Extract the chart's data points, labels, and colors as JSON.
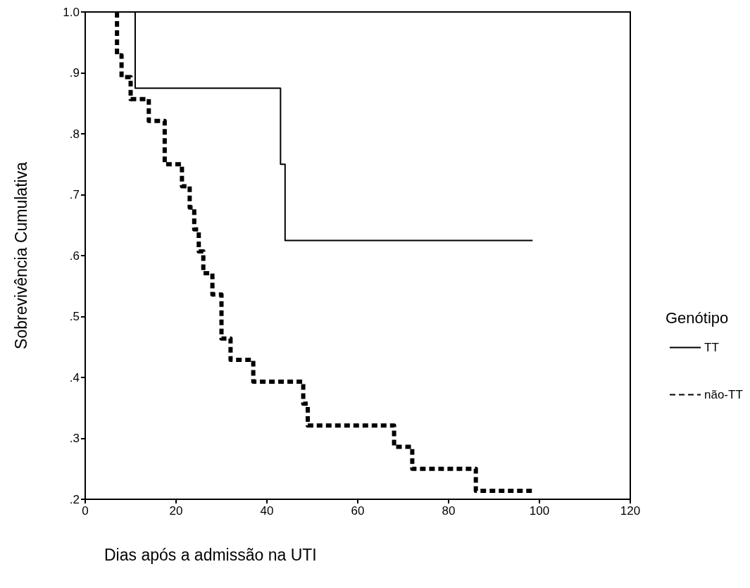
{
  "chart_data": {
    "type": "step",
    "xlabel": "Dias após a admissão na UTI",
    "ylabel": "Sobrevivência Cumulativa",
    "legend_title": "Genótipo",
    "series": [
      {
        "name": "TT",
        "color": "#000000",
        "line_style": "solid",
        "x": [
          11,
          11,
          43,
          44,
          98.5
        ],
        "values": [
          1.0,
          0.875,
          0.75,
          0.625,
          0.625
        ]
      },
      {
        "name": "não-TT",
        "color": "#000000",
        "line_style": "dashed",
        "x": [
          7,
          7,
          8,
          10,
          14,
          17.5,
          21.3,
          23,
          24,
          25,
          26,
          28,
          30,
          32,
          37,
          48,
          49,
          68,
          72,
          86,
          99
        ],
        "values": [
          1.0,
          0.929,
          0.893,
          0.857,
          0.821,
          0.75,
          0.714,
          0.679,
          0.643,
          0.607,
          0.571,
          0.536,
          0.464,
          0.429,
          0.393,
          0.357,
          0.321,
          0.286,
          0.25,
          0.214,
          0.214
        ]
      }
    ],
    "xlim": [
      0,
      120
    ],
    "xticks": [
      0,
      20,
      40,
      60,
      80,
      100,
      120
    ],
    "ylim": [
      0.2,
      1.0
    ],
    "yticks": [
      {
        "value": 0.2,
        "label": ".2"
      },
      {
        "value": 0.3,
        "label": ".3"
      },
      {
        "value": 0.4,
        "label": ".4"
      },
      {
        "value": 0.5,
        "label": ".5"
      },
      {
        "value": 0.6,
        "label": ".6"
      },
      {
        "value": 0.7,
        "label": ".7"
      },
      {
        "value": 0.8,
        "label": ".8"
      },
      {
        "value": 0.9,
        "label": ".9"
      },
      {
        "value": 1.0,
        "label": "1.0"
      }
    ],
    "grid": false,
    "legend": "right",
    "marker": "none"
  }
}
